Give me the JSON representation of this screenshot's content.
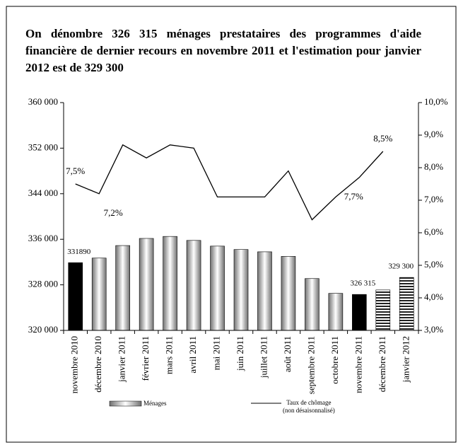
{
  "chart_data": {
    "type": "bar_line",
    "title": "On dénombre 326 315 ménages prestataires des programmes d'aide financière de dernier recours en novembre 2011 et l'estimation pour janvier 2012 est de 329 300",
    "categories": [
      "novembre 2010",
      "décembre 2010",
      "janvier 2011",
      "février 2011",
      "mars 2011",
      "avril 2011",
      "mai 2011",
      "juin 2011",
      "juillet 2011",
      "août 2011",
      "septembre 2011",
      "octobre 2011",
      "novembre 2011",
      "décembre 2011",
      "janvier 2012"
    ],
    "series": [
      {
        "name": "Ménages",
        "type": "bar",
        "color": "#808080",
        "values": [
          331890,
          332700,
          334900,
          336150,
          336500,
          335800,
          334800,
          334200,
          333800,
          333000,
          329100,
          326500,
          326315,
          327100,
          329300
        ],
        "value_labels": [
          "331890",
          null,
          null,
          null,
          null,
          null,
          null,
          null,
          null,
          null,
          null,
          null,
          "326 315",
          null,
          "329 300"
        ],
        "bar_fills": [
          "black",
          "gradient",
          "gradient",
          "gradient",
          "gradient",
          "gradient",
          "gradient",
          "gradient",
          "gradient",
          "gradient",
          "gradient",
          "gradient",
          "black",
          "hatched",
          "hatched"
        ]
      },
      {
        "name": "Taux de chômage\n(non désaisonnalisé)",
        "type": "line",
        "axis": "y2",
        "color": "#000000",
        "values": [
          7.5,
          7.2,
          8.7,
          8.3,
          8.7,
          8.6,
          7.1,
          7.1,
          7.1,
          7.9,
          6.4,
          7.1,
          7.7,
          8.5,
          null
        ],
        "value_labels": [
          "7,5%",
          "7,2%",
          null,
          null,
          null,
          null,
          null,
          null,
          null,
          null,
          null,
          null,
          "7,7%",
          "8,5%",
          null
        ]
      }
    ],
    "ylim": [
      320000,
      360000
    ],
    "yticks": [
      {
        "value": 320000,
        "label": "320 000"
      },
      {
        "value": 328000,
        "label": "328 000"
      },
      {
        "value": 336000,
        "label": "336 000"
      },
      {
        "value": 344000,
        "label": "344 000"
      },
      {
        "value": 352000,
        "label": "352 000"
      },
      {
        "value": 360000,
        "label": "360 000"
      }
    ],
    "y2lim": [
      3,
      10
    ],
    "y2ticks": [
      {
        "value": 3,
        "label": "3,0%"
      },
      {
        "value": 4,
        "label": "4,0%"
      },
      {
        "value": 5,
        "label": "5,0%"
      },
      {
        "value": 6,
        "label": "6,0%"
      },
      {
        "value": 7,
        "label": "7,0%"
      },
      {
        "value": 8,
        "label": "8,0%"
      },
      {
        "value": 9,
        "label": "9,0%"
      },
      {
        "value": 10,
        "label": "10,0%"
      }
    ]
  }
}
